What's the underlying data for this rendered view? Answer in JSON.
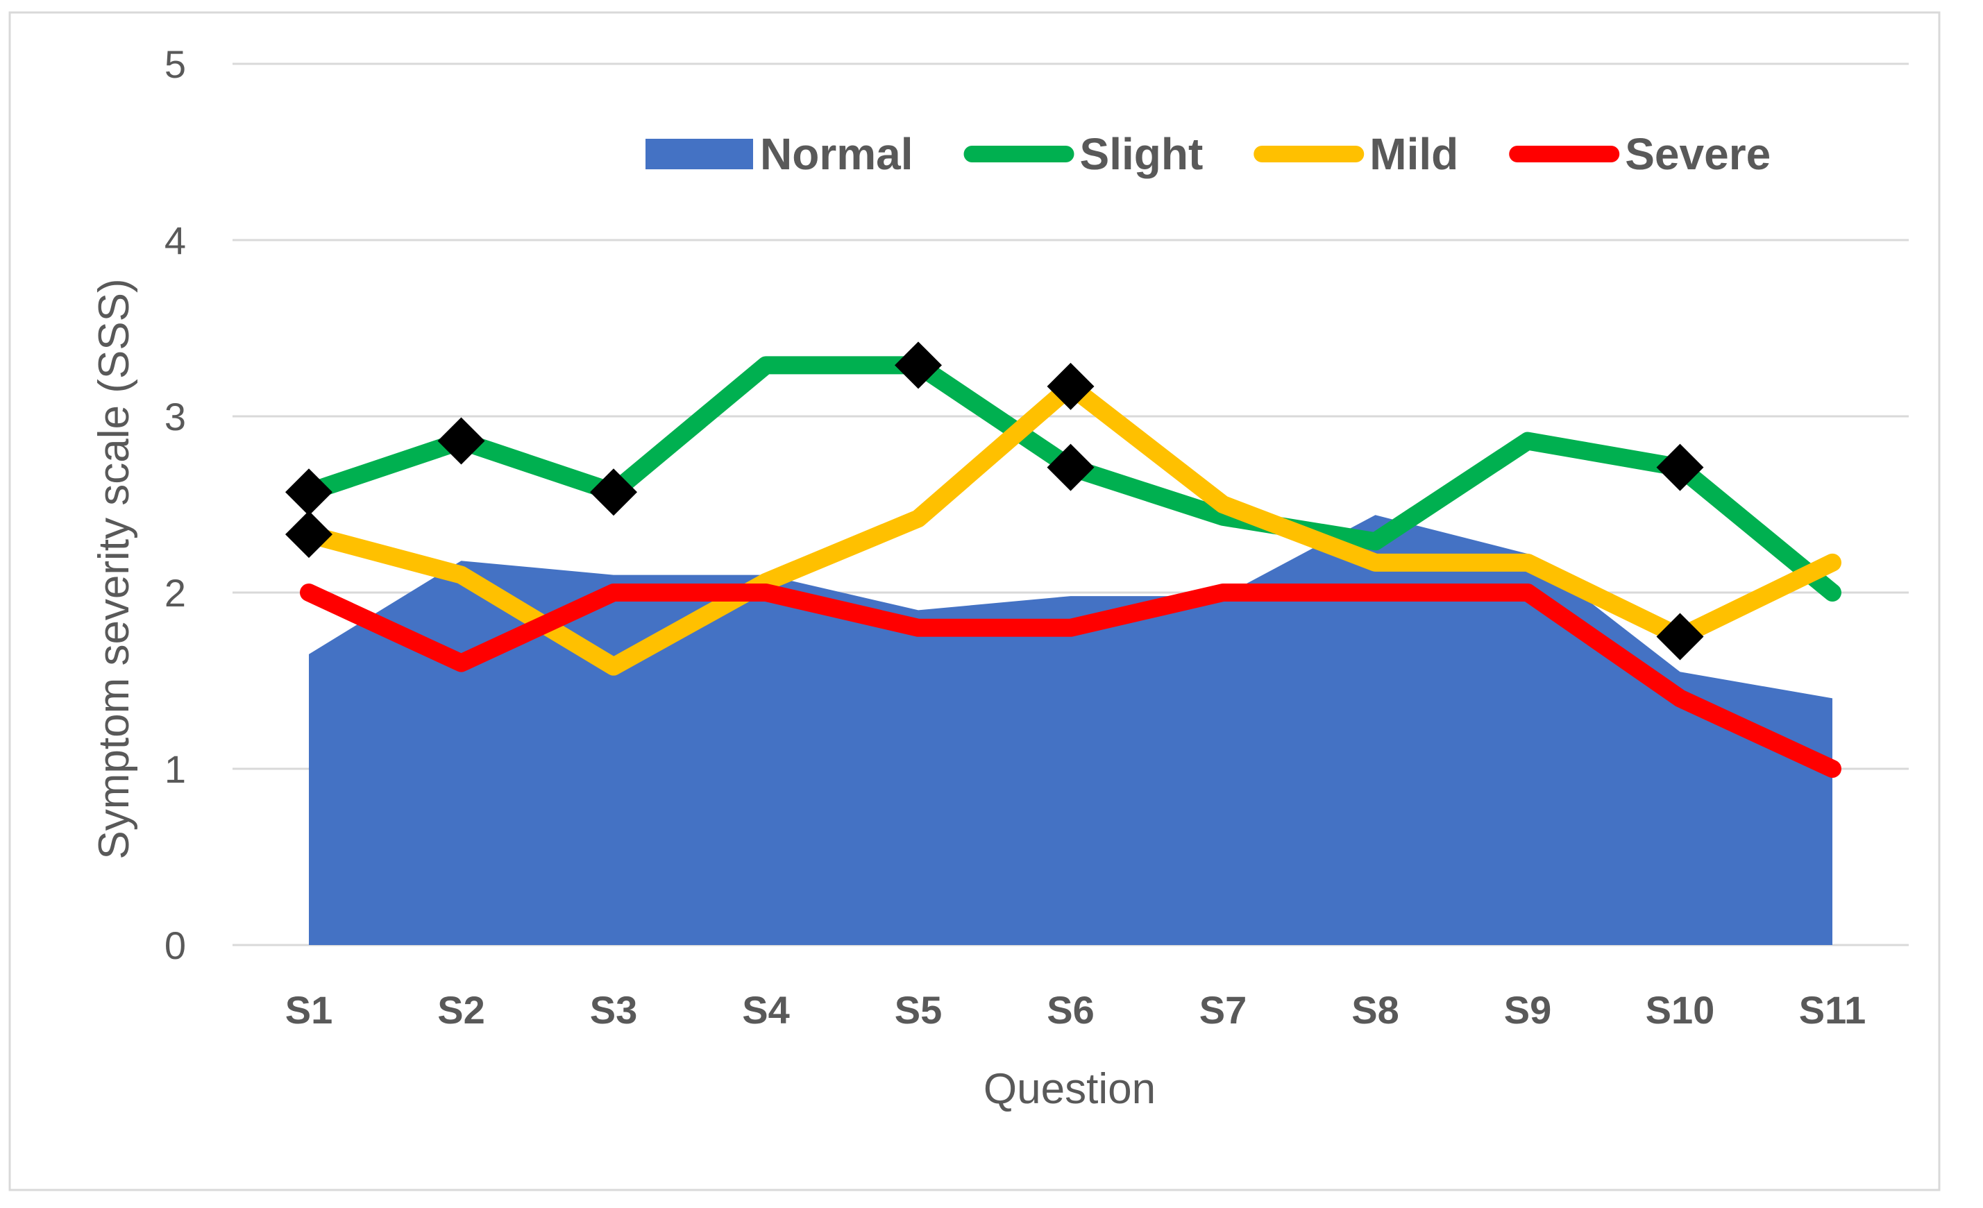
{
  "chart_data": {
    "type": "line",
    "title": "",
    "xlabel": "Question",
    "ylabel": "Symptom severity scale (SSS)",
    "ylim": [
      0,
      5
    ],
    "yticks": [
      0,
      1,
      2,
      3,
      4,
      5
    ],
    "grid": true,
    "legend_position": "top-right",
    "categories": [
      "S1",
      "S2",
      "S3",
      "S4",
      "S5",
      "S6",
      "S7",
      "S8",
      "S9",
      "S10",
      "S11"
    ],
    "series": [
      {
        "name": "Normal",
        "kind": "area",
        "color": "#4472C4",
        "values": [
          1.65,
          2.18,
          2.1,
          2.1,
          1.9,
          1.98,
          1.98,
          2.44,
          2.22,
          1.55,
          1.4
        ]
      },
      {
        "name": "Slight",
        "kind": "line",
        "color": "#00B050",
        "values": [
          2.57,
          2.86,
          2.57,
          3.29,
          3.29,
          2.71,
          2.43,
          2.29,
          2.86,
          2.71,
          2.0
        ],
        "diamond_markers_at": [
          0,
          1,
          2,
          4,
          5,
          9
        ]
      },
      {
        "name": "Mild",
        "kind": "line",
        "color": "#FFC000",
        "values": [
          2.33,
          2.1,
          1.58,
          2.06,
          2.42,
          3.17,
          2.5,
          2.17,
          2.17,
          1.75,
          2.17
        ],
        "diamond_markers_at": [
          0,
          5,
          9
        ]
      },
      {
        "name": "Severe",
        "kind": "line",
        "color": "#FF0000",
        "values": [
          2.0,
          1.6,
          2.0,
          2.0,
          1.8,
          1.8,
          2.0,
          2.0,
          2.0,
          1.4,
          1.0
        ],
        "diamond_markers_at": []
      }
    ]
  }
}
